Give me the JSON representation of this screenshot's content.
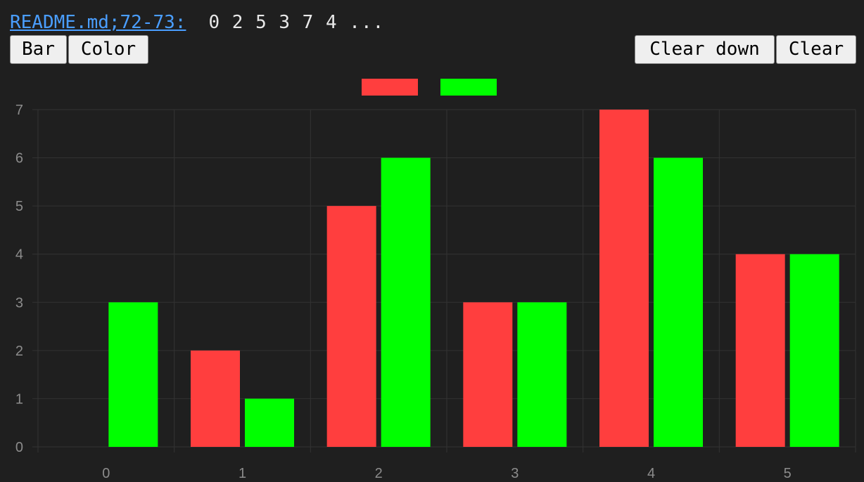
{
  "header": {
    "file_link": "README.md;72-73:",
    "sequence": "0 2 5 3 7 4 ..."
  },
  "toolbar": {
    "bar_label": "Bar",
    "color_label": "Color",
    "clear_down_label": "Clear down",
    "clear_label": "Clear"
  },
  "colors": {
    "background": "#1f1f1f",
    "grid": "#333333",
    "axis_text": "#8c8c8c",
    "series_red": "#ff3e3e",
    "series_green": "#00ff00"
  },
  "chart_data": {
    "type": "bar",
    "categories": [
      "0",
      "1",
      "2",
      "3",
      "4",
      "5"
    ],
    "series": [
      {
        "values": [
          0,
          2,
          5,
          3,
          7,
          4
        ],
        "color": "#ff3e3e"
      },
      {
        "values": [
          3,
          1,
          6,
          3,
          6,
          4
        ],
        "color": "#00ff00"
      }
    ],
    "ylim": [
      0,
      7
    ],
    "yticks": [
      0,
      1,
      2,
      3,
      4,
      5,
      6,
      7
    ],
    "grid": true,
    "legend": "top-center"
  }
}
